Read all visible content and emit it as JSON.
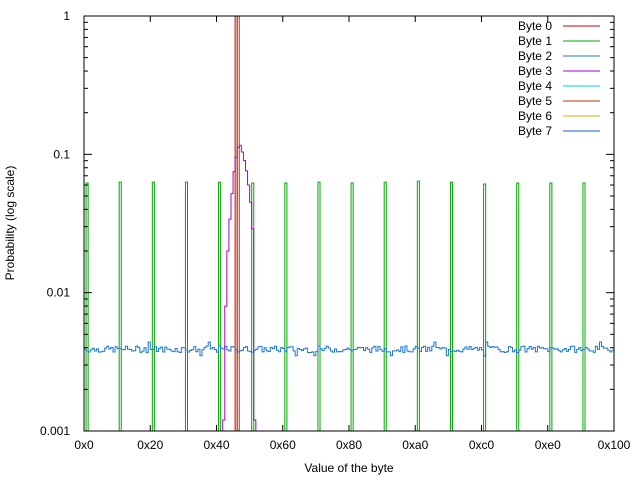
{
  "chart_data": {
    "type": "line",
    "title": "",
    "xlabel": "Value of the byte",
    "ylabel": "Probability (log scale)",
    "xlim": [
      0,
      256
    ],
    "ylim": [
      0.001,
      1
    ],
    "yscale": "log",
    "grid": false,
    "legend_position": "top-right",
    "x_ticks": [
      {
        "value": 0,
        "label": "0x0"
      },
      {
        "value": 32,
        "label": "0x20"
      },
      {
        "value": 64,
        "label": "0x40"
      },
      {
        "value": 96,
        "label": "0x60"
      },
      {
        "value": 128,
        "label": "0x80"
      },
      {
        "value": 160,
        "label": "0xa0"
      },
      {
        "value": 192,
        "label": "0xc0"
      },
      {
        "value": 224,
        "label": "0xe0"
      },
      {
        "value": 256,
        "label": "0x100"
      }
    ],
    "y_ticks": [
      {
        "value": 0.001,
        "label": "0.001"
      },
      {
        "value": 0.01,
        "label": "0.01"
      },
      {
        "value": 0.1,
        "label": "0.1"
      },
      {
        "value": 1,
        "label": "1"
      }
    ],
    "series": [
      {
        "name": "Byte 0",
        "color": "#cc0000",
        "spikes": [
          {
            "x": 73,
            "y": 1
          }
        ]
      },
      {
        "name": "Byte 1",
        "color": "#00aa00",
        "spikes": [
          {
            "x": 1,
            "y": 0.062
          },
          {
            "x": 17,
            "y": 0.063
          },
          {
            "x": 33,
            "y": 0.063
          },
          {
            "x": 49,
            "y": 0.063
          },
          {
            "x": 65,
            "y": 0.063
          },
          {
            "x": 81,
            "y": 0.062
          },
          {
            "x": 97,
            "y": 0.062
          },
          {
            "x": 113,
            "y": 0.063
          },
          {
            "x": 129,
            "y": 0.062
          },
          {
            "x": 145,
            "y": 0.063
          },
          {
            "x": 161,
            "y": 0.064
          },
          {
            "x": 177,
            "y": 0.063
          },
          {
            "x": 193,
            "y": 0.061
          },
          {
            "x": 209,
            "y": 0.062
          },
          {
            "x": 225,
            "y": 0.062
          },
          {
            "x": 241,
            "y": 0.062
          }
        ]
      },
      {
        "name": "Byte 2",
        "color": "#1f77d4",
        "y_base": 0.0039,
        "y_noise_min": 0.0035,
        "y_noise_max": 0.0044
      },
      {
        "name": "Byte 3",
        "color": "#aa00cc",
        "x": [
          67,
          68,
          69,
          70,
          71,
          72,
          73,
          74,
          75,
          76,
          77,
          78,
          79,
          80,
          81,
          82
        ],
        "values": [
          0.0012,
          0.008,
          0.02,
          0.034,
          0.052,
          0.075,
          0.095,
          0.112,
          0.116,
          0.104,
          0.09,
          0.076,
          0.06,
          0.045,
          0.029,
          0.0012
        ]
      },
      {
        "name": "Byte 4",
        "color": "#00cccc",
        "spikes": []
      },
      {
        "name": "Byte 5",
        "color": "#b83a0e",
        "spikes": [
          {
            "x": 74,
            "y": 1
          }
        ]
      },
      {
        "name": "Byte 6",
        "color": "#c8b400",
        "spikes": []
      },
      {
        "name": "Byte 7",
        "color": "#2255cc",
        "spikes": []
      }
    ]
  }
}
